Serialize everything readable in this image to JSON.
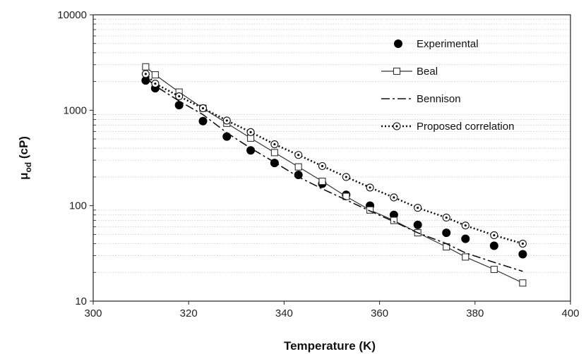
{
  "chart_data": {
    "type": "scatter",
    "title": "",
    "xlabel": "Temperature (K)",
    "ylabel_main": "μ",
    "ylabel_sub": "od",
    "ylabel_unit": " (cP)",
    "xlim": [
      300,
      400
    ],
    "ylim": [
      10,
      10000
    ],
    "yscale": "log",
    "grid": "horizontal minor dotted",
    "legend_position": "top-right",
    "x_ticks": [
      "300",
      "320",
      "340",
      "360",
      "380",
      "400"
    ],
    "y_ticks": [
      "10",
      "100",
      "1000",
      "10000"
    ],
    "series": [
      {
        "name": "Experimental",
        "style": "filled-circle",
        "color": "#000000",
        "x": [
          311,
          313,
          318,
          323,
          328,
          333,
          338,
          343,
          348,
          353,
          358,
          363,
          368,
          374,
          378,
          384,
          390
        ],
        "y": [
          2050,
          1700,
          1130,
          770,
          530,
          380,
          280,
          210,
          170,
          130,
          100,
          80,
          63,
          52,
          45,
          38,
          31
        ]
      },
      {
        "name": "Beal",
        "style": "solid-line-open-square",
        "color": "#333333",
        "x": [
          311,
          313,
          318,
          323,
          328,
          333,
          338,
          343,
          348,
          353,
          358,
          363,
          368,
          374,
          378,
          384,
          390
        ],
        "y": [
          2850,
          2350,
          1550,
          1050,
          730,
          510,
          360,
          255,
          180,
          125,
          90,
          70,
          52,
          37,
          29,
          21.5,
          15.5
        ]
      },
      {
        "name": "Bennison",
        "style": "dash-dot-line",
        "color": "#111111",
        "x": [
          311,
          313,
          318,
          323,
          328,
          333,
          338,
          343,
          348,
          353,
          358,
          363,
          368,
          374,
          378,
          384,
          390
        ],
        "y": [
          2200,
          1800,
          1250,
          900,
          580,
          400,
          285,
          200,
          150,
          115,
          88,
          68,
          52,
          40,
          32,
          25.5,
          20.5
        ]
      },
      {
        "name": "Proposed correlation",
        "style": "dotted-line-open-circle",
        "color": "#111111",
        "x": [
          311,
          313,
          318,
          323,
          328,
          333,
          338,
          343,
          348,
          353,
          358,
          363,
          368,
          374,
          378,
          384,
          390
        ],
        "y": [
          2400,
          1900,
          1400,
          1050,
          780,
          590,
          440,
          340,
          260,
          200,
          155,
          122,
          95,
          75,
          62,
          49,
          40
        ]
      }
    ]
  }
}
